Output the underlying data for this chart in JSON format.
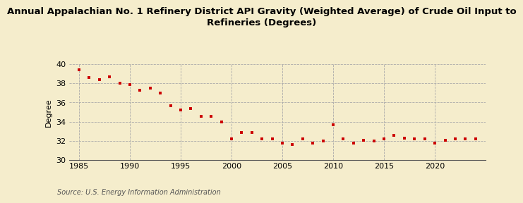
{
  "title_line1": "Annual Appalachian No. 1 Refinery District API Gravity (Weighted Average) of Crude Oil Input to",
  "title_line2": "Refineries (Degrees)",
  "ylabel": "Degree",
  "source": "Source: U.S. Energy Information Administration",
  "background_color": "#f5edcc",
  "plot_background_color": "#f5edcc",
  "marker_color": "#cc0000",
  "xlim": [
    1984,
    2025
  ],
  "ylim": [
    30,
    40
  ],
  "yticks": [
    30,
    32,
    34,
    36,
    38,
    40
  ],
  "xticks": [
    1985,
    1990,
    1995,
    2000,
    2005,
    2010,
    2015,
    2020
  ],
  "years": [
    1985,
    1986,
    1987,
    1988,
    1989,
    1990,
    1991,
    1992,
    1993,
    1994,
    1995,
    1996,
    1997,
    1998,
    1999,
    2000,
    2001,
    2002,
    2003,
    2004,
    2005,
    2006,
    2007,
    2008,
    2009,
    2010,
    2011,
    2012,
    2013,
    2014,
    2015,
    2016,
    2017,
    2018,
    2019,
    2020,
    2021,
    2022,
    2023,
    2024
  ],
  "values": [
    39.4,
    38.6,
    38.4,
    38.7,
    38.0,
    37.9,
    37.3,
    37.5,
    37.0,
    35.7,
    35.2,
    35.4,
    34.6,
    34.6,
    34.0,
    32.2,
    32.9,
    32.9,
    32.2,
    32.2,
    31.8,
    31.6,
    32.2,
    31.8,
    32.0,
    33.7,
    32.2,
    31.8,
    32.1,
    32.0,
    32.2,
    32.6,
    32.3,
    32.2,
    32.2,
    31.8,
    32.1,
    32.2,
    32.2,
    32.2
  ],
  "title_fontsize": 9.5,
  "tick_fontsize": 8,
  "ylabel_fontsize": 8,
  "source_fontsize": 7
}
